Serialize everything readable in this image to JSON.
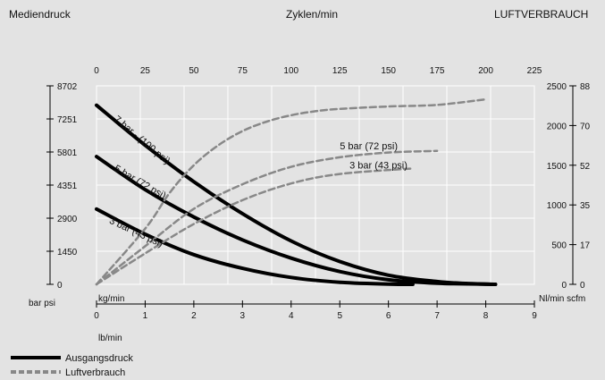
{
  "header": {
    "left": "Mediendruck",
    "center": "Zyklen/min",
    "right": "LUFTVERBRAUCH"
  },
  "chart_data": {
    "type": "line",
    "grid": true,
    "axes": {
      "x_top": {
        "label": "Zyklen/min",
        "range": [
          0,
          225
        ],
        "ticks": [
          "0",
          "25",
          "50",
          "75",
          "100",
          "125",
          "150",
          "175",
          "200",
          "225"
        ]
      },
      "x_bottom": {
        "label": "kg/min",
        "label2": "lb/min",
        "range": [
          0,
          9
        ],
        "ticks": [
          "0",
          "1",
          "2",
          "3",
          "4",
          "5",
          "6",
          "7",
          "8",
          "9"
        ]
      },
      "y_left": {
        "label": "bar psi",
        "range": [
          0,
          8702
        ],
        "ticks": [
          "0",
          "1450",
          "2900",
          "4351",
          "5801",
          "7251",
          "8702"
        ]
      },
      "y_right": {
        "label": "Nl/min scfm",
        "range": [
          0,
          2500
        ],
        "ticks_nl": [
          "0",
          "500",
          "1000",
          "1500",
          "2000",
          "2500"
        ],
        "ticks_scfm": [
          "0",
          "17",
          "35",
          "52",
          "70",
          "88"
        ]
      }
    },
    "series": [
      {
        "group": "Ausgangsdruck",
        "name": "7 bar - (100 psi)",
        "axis": "left",
        "x": [
          0,
          1,
          2,
          3,
          4,
          5,
          6,
          7,
          7.6,
          8.2
        ],
        "y": [
          7850,
          6100,
          4500,
          3100,
          1900,
          1000,
          400,
          120,
          40,
          0
        ]
      },
      {
        "group": "Ausgangsdruck",
        "name": "5 bar (72 psi)",
        "axis": "left",
        "x": [
          0,
          1,
          2,
          3,
          4,
          5,
          6,
          7,
          8.2
        ],
        "y": [
          5600,
          4150,
          2950,
          1950,
          1150,
          560,
          200,
          50,
          0
        ]
      },
      {
        "group": "Ausgangsdruck",
        "name": "3 bar (43 psi)",
        "axis": "left",
        "x": [
          0,
          1,
          2,
          3,
          4,
          5,
          6,
          6.5
        ],
        "y": [
          3300,
          2200,
          1300,
          700,
          300,
          90,
          10,
          0
        ]
      },
      {
        "group": "Luftverbrauch",
        "name": "7 bar - (100 psi)",
        "axis": "right",
        "x": [
          0,
          1,
          1.5,
          2,
          2.5,
          3,
          3.5,
          4,
          4.5,
          5,
          6,
          7,
          8
        ],
        "y": [
          0,
          700,
          1150,
          1500,
          1750,
          1930,
          2050,
          2130,
          2180,
          2210,
          2240,
          2260,
          2330
        ]
      },
      {
        "group": "Luftverbrauch",
        "name": "5 bar (72 psi)",
        "axis": "right",
        "x": [
          0,
          1,
          2,
          3,
          4,
          5,
          6,
          7
        ],
        "y": [
          0,
          480,
          950,
          1260,
          1480,
          1600,
          1660,
          1680
        ]
      },
      {
        "group": "Luftverbrauch",
        "name": "3 bar (43 psi)",
        "axis": "right",
        "x": [
          0,
          1,
          2,
          3,
          4,
          5,
          6.5
        ],
        "y": [
          0,
          390,
          760,
          1060,
          1270,
          1390,
          1460
        ]
      }
    ],
    "annotations": [
      {
        "text": "7 bar - (100 psi)",
        "x": 0.35,
        "y": 7200,
        "axis": "left",
        "angle": 40
      },
      {
        "text": "5 bar (72 psi)",
        "x": 0.35,
        "y": 5000,
        "axis": "left",
        "angle": 30
      },
      {
        "text": "3 bar (43 psi)",
        "x": 0.25,
        "y": 2700,
        "axis": "left",
        "angle": 25
      },
      {
        "text": "5 bar (72 psi)",
        "x": 5.0,
        "y": 1700,
        "axis": "right",
        "angle": 0
      },
      {
        "text": "3 bar (43 psi)",
        "x": 5.2,
        "y": 1460,
        "axis": "right",
        "angle": 0
      }
    ],
    "legend": {
      "position": "bottom-left",
      "items": [
        {
          "label": "Ausgangsdruck",
          "style": "solid"
        },
        {
          "label": "Luftverbrauch",
          "style": "dashed"
        }
      ]
    }
  },
  "colors": {
    "background": "#e3e3e3",
    "grid": "#ffffff",
    "solid": "#000000",
    "dashed": "#888888"
  }
}
